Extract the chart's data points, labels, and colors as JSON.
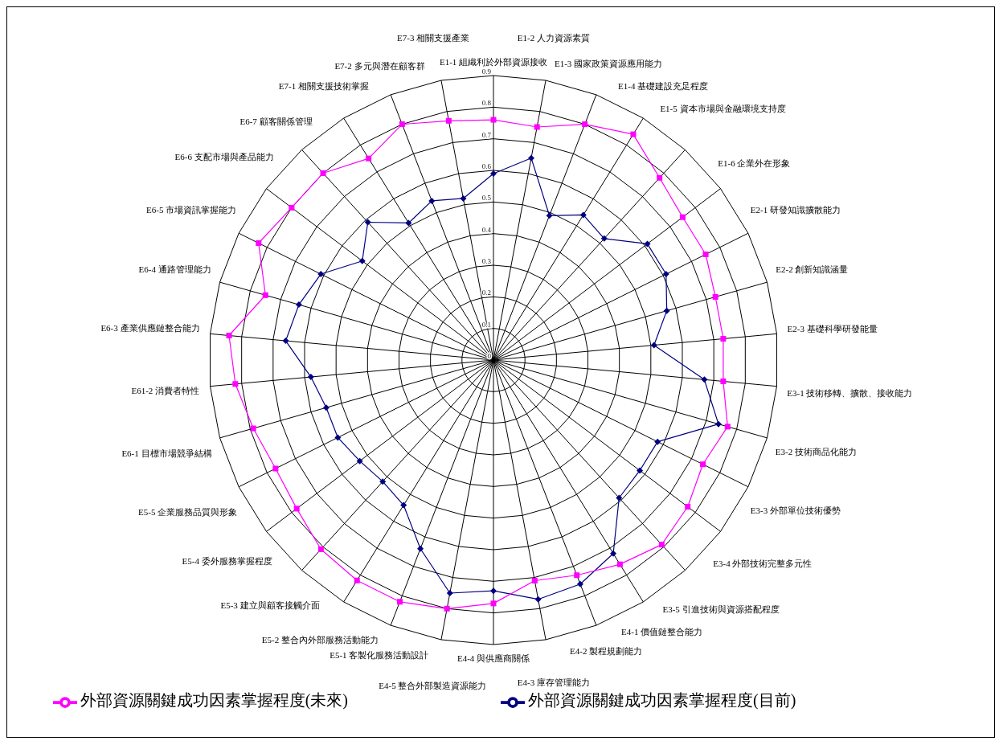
{
  "chart_data": {
    "type": "radar",
    "categories": [
      "E1-1 組織利於外部資源接收",
      "E1-2 人力資源素質",
      "E1-3 國家政策資源應用能力",
      "E1-4 基礎建設充足程度",
      "E1-5 資本市場與金融環境支持度",
      "E1-6 企業外在形象",
      "E2-1 研發知識擴散能力",
      "E2-2 創新知識涵量",
      "E2-3 基礎科學研發能量",
      "E3-1 技術移轉、擴散、接收能力",
      "E3-2 技術商品化能力",
      "E3-3 外部單位技術優勢",
      "E3-4 外部技術完整多元性",
      "E3-5 引進技術與資源搭配程度",
      "E4-1 價值鏈整合能力",
      "E4-2 製程規劃能力",
      "E4-3 庫存管理能力",
      "E4-4 與供應商關係",
      "E4-5 整合外部製造資源能力",
      "E5-1 客製化服務活動設計",
      "E5-2 整合內外部服務活動能力",
      "E5-3 建立與顧客接觸介面",
      "E5-4 委外服務掌握程度",
      "E5-5 企業服務品質與形象",
      "E6-1 目標市場競爭結構",
      "E61-2 消費者特性",
      "E6-3 產業供應鏈整合能力",
      "E6-4 通路管理能力",
      "E6-5 市場資訊掌握能力",
      "E6-6 支配市場與產品能力",
      "E6-7 顧客關係管理",
      "E7-1 相關支援技術掌握",
      "E7-2 多元與潛在顧客群",
      "E7-3 相關支援產業"
    ],
    "series": [
      {
        "name": "外部資源關鍵成功因素掌握程度(目前)",
        "color": "#000080",
        "marker": "diamond",
        "values": [
          0.59,
          0.65,
          0.49,
          0.54,
          0.52,
          0.61,
          0.61,
          0.57,
          0.51,
          0.67,
          0.74,
          0.58,
          0.58,
          0.59,
          0.72,
          0.76,
          0.77,
          0.73,
          0.75,
          0.64,
          0.54,
          0.52,
          0.53,
          0.55,
          0.55,
          0.58,
          0.66,
          0.64,
          0.61,
          0.52,
          0.59,
          0.51,
          0.54,
          0.52
        ]
      },
      {
        "name": "外部資源關鍵成功因素掌握程度(未來)",
        "color": "#ff00ff",
        "marker": "square",
        "values": [
          0.76,
          0.75,
          0.8,
          0.84,
          0.78,
          0.75,
          0.75,
          0.73,
          0.73,
          0.73,
          0.77,
          0.74,
          0.77,
          0.79,
          0.76,
          0.73,
          0.71,
          0.77,
          0.8,
          0.82,
          0.82,
          0.81,
          0.78,
          0.77,
          0.79,
          0.82,
          0.84,
          0.75,
          0.83,
          0.8,
          0.8,
          0.75,
          0.8,
          0.77
        ]
      }
    ],
    "ylim": [
      0,
      0.9
    ],
    "yticks": [
      0,
      0.1,
      0.2,
      0.3,
      0.4,
      0.5,
      0.6,
      0.7,
      0.8,
      0.9
    ],
    "grid": true,
    "legend": "bottom",
    "line_style": "solid"
  }
}
